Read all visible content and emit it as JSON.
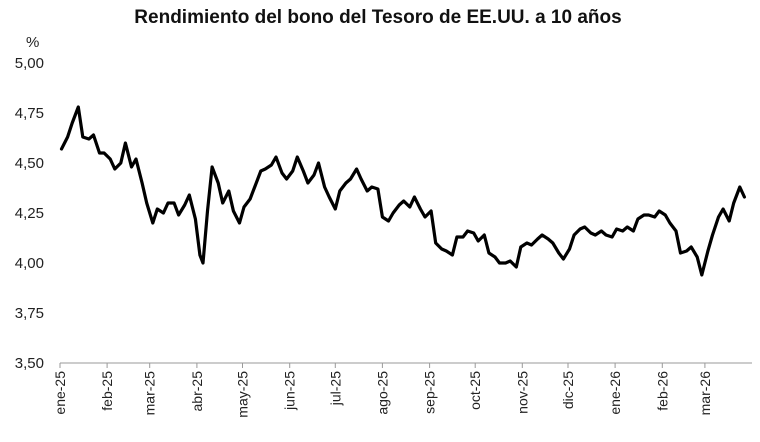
{
  "chart_data": {
    "type": "line",
    "title": "Rendimiento del bono del Tesoro de EE.UU. a 10 años",
    "ylabel": "%",
    "xlabel": "",
    "ylim": [
      3.5,
      5.0
    ],
    "yticks": [
      3.5,
      3.75,
      4.0,
      4.25,
      4.5,
      4.75,
      5.0
    ],
    "ytick_labels": [
      "3,50",
      "3,75",
      "4,00",
      "4,25",
      "4,50",
      "4,75",
      "5,00"
    ],
    "xlim": [
      "2025-01-01",
      "2026-04-01"
    ],
    "xtick_labels": [
      "ene-25",
      "feb-25",
      "mar-25",
      "abr-25",
      "may-25",
      "jun-25",
      "jul-25",
      "ago-25",
      "sep-25",
      "oct-25",
      "nov-25",
      "dic-25",
      "ene-26",
      "feb-26",
      "mar-26"
    ],
    "xtick_dates": [
      "2025-01-01",
      "2025-02-01",
      "2025-03-01",
      "2025-04-01",
      "2025-05-01",
      "2025-06-01",
      "2025-07-01",
      "2025-08-01",
      "2025-09-01",
      "2025-10-01",
      "2025-11-01",
      "2025-12-01",
      "2026-01-01",
      "2026-02-01",
      "2026-03-01"
    ],
    "grid": false,
    "legend": "none",
    "series": [
      {
        "color": "#000000",
        "x": [
          "2025-01-02",
          "2025-01-06",
          "2025-01-09",
          "2025-01-13",
          "2025-01-16",
          "2025-01-20",
          "2025-01-23",
          "2025-01-27",
          "2025-01-30",
          "2025-02-03",
          "2025-02-06",
          "2025-02-10",
          "2025-02-13",
          "2025-02-17",
          "2025-02-20",
          "2025-02-24",
          "2025-02-27",
          "2025-03-03",
          "2025-03-06",
          "2025-03-10",
          "2025-03-13",
          "2025-03-17",
          "2025-03-20",
          "2025-03-24",
          "2025-03-27",
          "2025-03-31",
          "2025-04-03",
          "2025-04-05",
          "2025-04-08",
          "2025-04-11",
          "2025-04-15",
          "2025-04-18",
          "2025-04-22",
          "2025-04-25",
          "2025-04-29",
          "2025-05-02",
          "2025-05-06",
          "2025-05-09",
          "2025-05-13",
          "2025-05-16",
          "2025-05-20",
          "2025-05-23",
          "2025-05-27",
          "2025-05-30",
          "2025-06-03",
          "2025-06-06",
          "2025-06-10",
          "2025-06-13",
          "2025-06-17",
          "2025-06-20",
          "2025-06-24",
          "2025-06-27",
          "2025-07-01",
          "2025-07-04",
          "2025-07-08",
          "2025-07-11",
          "2025-07-15",
          "2025-07-18",
          "2025-07-22",
          "2025-07-25",
          "2025-07-29",
          "2025-08-01",
          "2025-08-05",
          "2025-08-08",
          "2025-08-12",
          "2025-08-15",
          "2025-08-19",
          "2025-08-22",
          "2025-08-26",
          "2025-08-29",
          "2025-09-02",
          "2025-09-05",
          "2025-09-09",
          "2025-09-12",
          "2025-09-16",
          "2025-09-19",
          "2025-09-23",
          "2025-09-26",
          "2025-09-30",
          "2025-10-03",
          "2025-10-07",
          "2025-10-10",
          "2025-10-14",
          "2025-10-17",
          "2025-10-21",
          "2025-10-24",
          "2025-10-28",
          "2025-10-31",
          "2025-11-04",
          "2025-11-07",
          "2025-11-11",
          "2025-11-14",
          "2025-11-18",
          "2025-11-21",
          "2025-11-25",
          "2025-11-28",
          "2025-12-02",
          "2025-12-05",
          "2025-12-09",
          "2025-12-12",
          "2025-12-16",
          "2025-12-19",
          "2025-12-23",
          "2025-12-26",
          "2025-12-30",
          "2026-01-02",
          "2026-01-06",
          "2026-01-09",
          "2026-01-13",
          "2026-01-16",
          "2026-01-20",
          "2026-01-23",
          "2026-01-27",
          "2026-01-30",
          "2026-02-03",
          "2026-02-06",
          "2026-02-10",
          "2026-02-13",
          "2026-02-17",
          "2026-02-20",
          "2026-02-24",
          "2026-02-27",
          "2026-03-03",
          "2026-03-06",
          "2026-03-10",
          "2026-03-13",
          "2026-03-17",
          "2026-03-20",
          "2026-03-24",
          "2026-03-27"
        ],
        "values": [
          4.57,
          4.63,
          4.7,
          4.78,
          4.63,
          4.62,
          4.64,
          4.55,
          4.55,
          4.52,
          4.47,
          4.5,
          4.6,
          4.48,
          4.52,
          4.4,
          4.3,
          4.2,
          4.27,
          4.25,
          4.3,
          4.3,
          4.24,
          4.29,
          4.34,
          4.22,
          4.04,
          4.0,
          4.26,
          4.48,
          4.4,
          4.3,
          4.36,
          4.26,
          4.2,
          4.28,
          4.32,
          4.38,
          4.46,
          4.47,
          4.49,
          4.53,
          4.45,
          4.42,
          4.46,
          4.53,
          4.46,
          4.4,
          4.44,
          4.5,
          4.38,
          4.33,
          4.27,
          4.36,
          4.4,
          4.42,
          4.47,
          4.42,
          4.36,
          4.38,
          4.37,
          4.23,
          4.21,
          4.25,
          4.29,
          4.31,
          4.28,
          4.33,
          4.27,
          4.23,
          4.26,
          4.1,
          4.07,
          4.06,
          4.04,
          4.13,
          4.13,
          4.16,
          4.15,
          4.11,
          4.14,
          4.05,
          4.03,
          4.0,
          4.0,
          4.01,
          3.98,
          4.08,
          4.1,
          4.09,
          4.12,
          4.14,
          4.12,
          4.1,
          4.05,
          4.02,
          4.07,
          4.14,
          4.17,
          4.18,
          4.15,
          4.14,
          4.16,
          4.14,
          4.13,
          4.17,
          4.16,
          4.18,
          4.16,
          4.22,
          4.24,
          4.24,
          4.23,
          4.26,
          4.24,
          4.2,
          4.16,
          4.05,
          4.06,
          4.08,
          4.03,
          3.94,
          4.06,
          4.14,
          4.23,
          4.27,
          4.21,
          4.3,
          4.38,
          4.33
        ]
      }
    ]
  }
}
